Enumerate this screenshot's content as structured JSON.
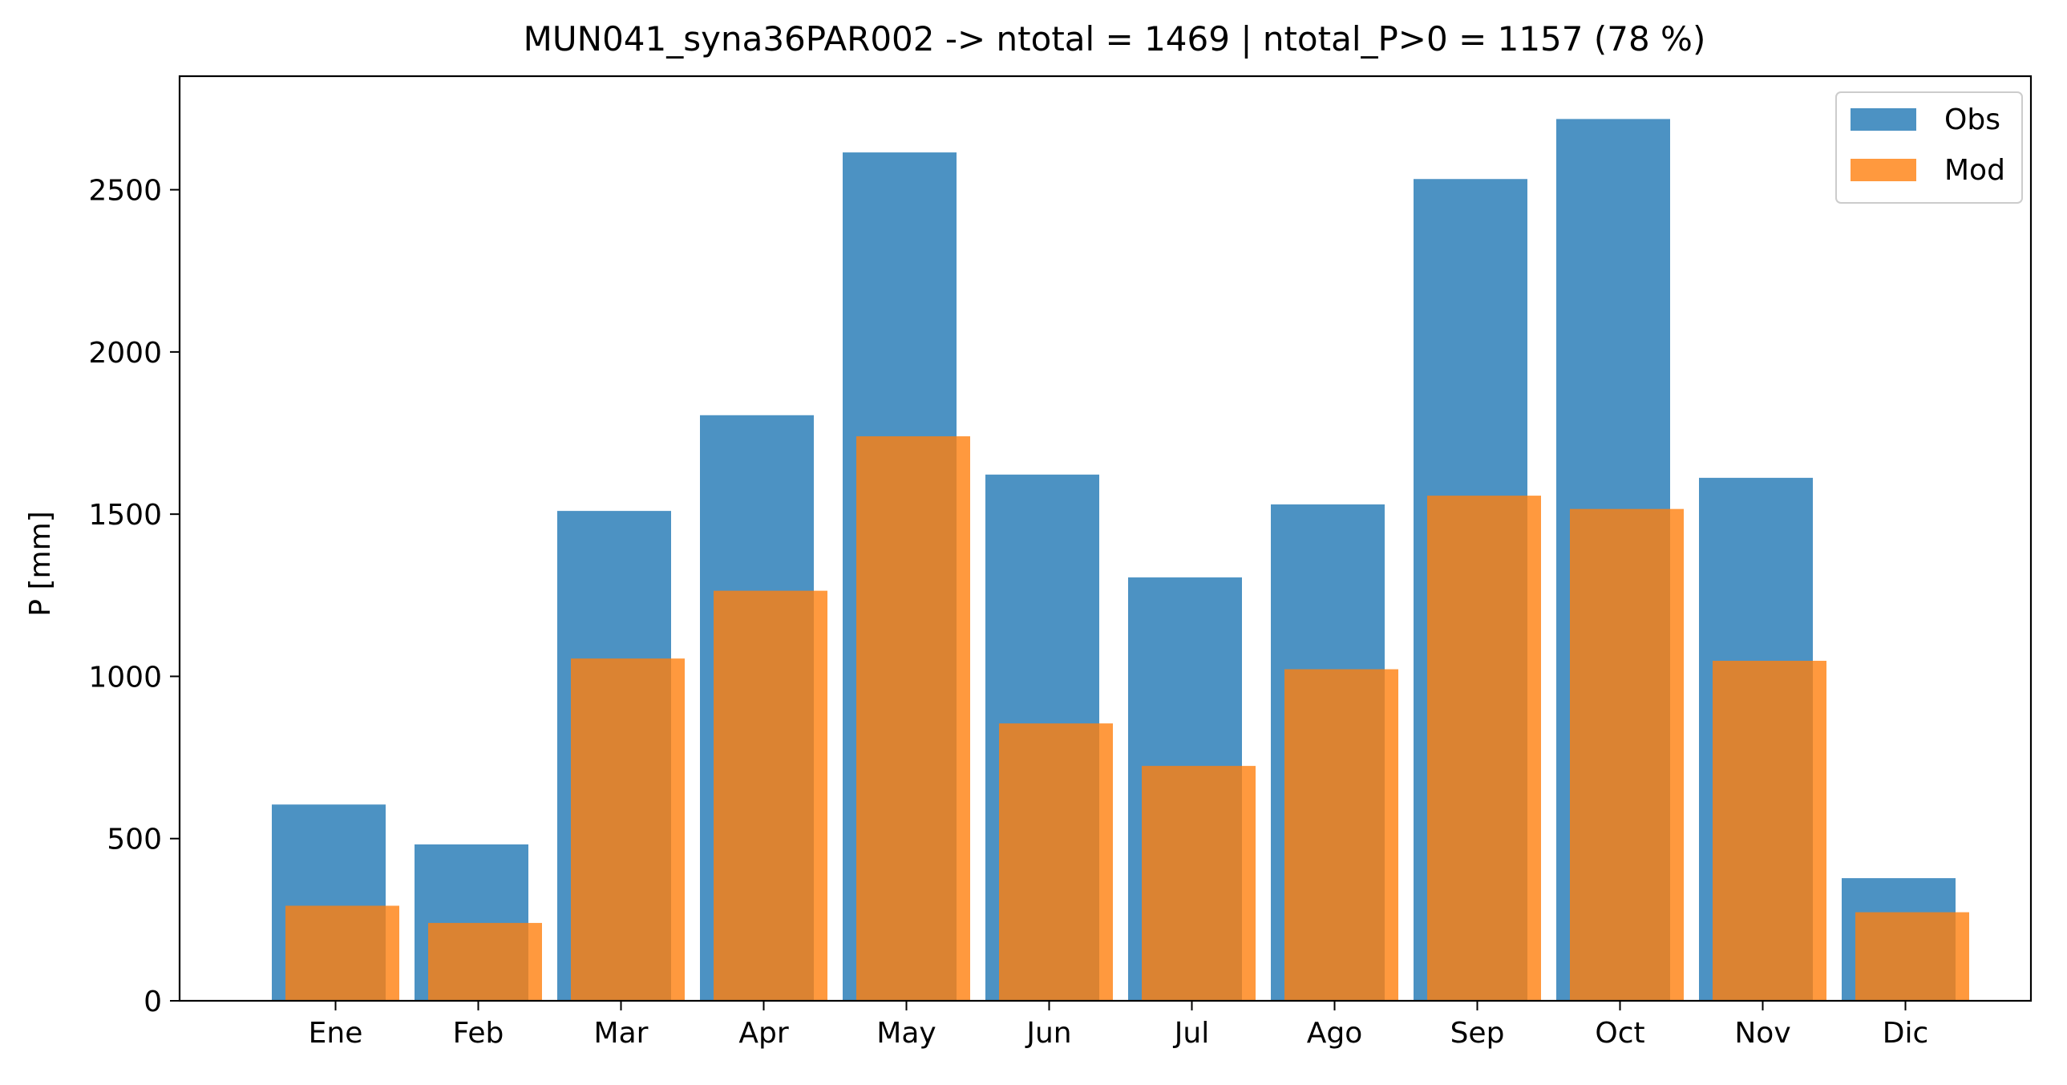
{
  "chart_data": {
    "type": "bar",
    "title": "MUN041_syna36PAR002 -> ntotal = 1469 | ntotal_P>0 = 1157 (78 %)",
    "xlabel": "",
    "ylabel": "P [mm]",
    "categories": [
      "Ene",
      "Feb",
      "Mar",
      "Apr",
      "May",
      "Jun",
      "Jul",
      "Ago",
      "Sep",
      "Oct",
      "Nov",
      "Dic"
    ],
    "ylim": [
      0,
      2850
    ],
    "yticks": [
      0,
      500,
      1000,
      1500,
      2000,
      2500
    ],
    "series": [
      {
        "name": "Obs",
        "color": "#1f77b4",
        "values": [
          605,
          482,
          1510,
          1805,
          2615,
          1622,
          1305,
          1530,
          2533,
          2718,
          1612,
          378
        ]
      },
      {
        "name": "Mod",
        "color": "#ff7f0e",
        "values": [
          293,
          240,
          1055,
          1264,
          1740,
          855,
          724,
          1022,
          1557,
          1516,
          1048,
          273
        ]
      }
    ],
    "legend_position": "top-right",
    "grid": false
  }
}
